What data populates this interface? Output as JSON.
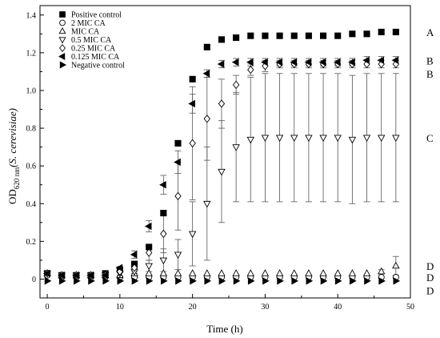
{
  "chart_data": {
    "type": "scatter",
    "xlabel": "Time (h)",
    "ylabel": {
      "prefix": "OD",
      "subscript": "620 nm",
      "organism": "(S. cerevisiae)"
    },
    "xlim": [
      -1,
      50
    ],
    "ylim": [
      -0.1,
      1.45
    ],
    "xticks": [
      0,
      10,
      20,
      30,
      40,
      50
    ],
    "yticks": [
      0,
      0.2,
      0.4,
      0.6,
      0.8,
      1.0,
      1.2,
      1.4
    ],
    "ytick_labels": [
      "0",
      "0.2",
      "0.4",
      "0.6",
      "0.8",
      "1.0",
      "1.2",
      "1.4"
    ],
    "legend": "top-left",
    "x": [
      0,
      2,
      4,
      6,
      8,
      10,
      12,
      14,
      16,
      18,
      20,
      22,
      24,
      26,
      28,
      30,
      32,
      34,
      36,
      38,
      40,
      42,
      44,
      46,
      48
    ],
    "series": [
      {
        "name": "Positive control",
        "marker": "square-filled",
        "values": [
          0.03,
          0.02,
          0.02,
          0.02,
          0.03,
          0.05,
          0.08,
          0.17,
          0.35,
          0.72,
          1.06,
          1.23,
          1.27,
          1.28,
          1.29,
          1.29,
          1.29,
          1.29,
          1.29,
          1.29,
          1.29,
          1.3,
          1.3,
          1.31,
          1.31
        ]
      },
      {
        "name": "2 MIC CA",
        "marker": "circle-open",
        "values": [
          0.02,
          0.01,
          0.01,
          0.01,
          0.01,
          0.01,
          0.01,
          0.01,
          0.01,
          0.01,
          0.01,
          0.01,
          0.01,
          0.01,
          0.01,
          0.01,
          0.01,
          0.01,
          0.01,
          0.01,
          0.01,
          0.01,
          0.01,
          0.01,
          0.01
        ]
      },
      {
        "name": "MIC CA",
        "marker": "triangle-up-open",
        "values": [
          0.03,
          0.02,
          0.02,
          0.02,
          0.02,
          0.02,
          0.03,
          0.03,
          0.03,
          0.03,
          0.03,
          0.03,
          0.03,
          0.03,
          0.03,
          0.03,
          0.03,
          0.03,
          0.03,
          0.03,
          0.03,
          0.03,
          0.03,
          0.04,
          0.07
        ],
        "error": [
          0,
          0,
          0,
          0,
          0,
          0,
          0,
          0,
          0,
          0,
          0,
          0,
          0,
          0,
          0,
          0,
          0,
          0,
          0,
          0,
          0,
          0,
          0,
          0.01,
          0.05
        ]
      },
      {
        "name": "0.5 MIC CA",
        "marker": "triangle-down-open",
        "values": [
          0.03,
          0.02,
          0.02,
          0.02,
          0.02,
          0.03,
          0.04,
          0.07,
          0.1,
          0.13,
          0.24,
          0.4,
          0.57,
          0.7,
          0.74,
          0.75,
          0.75,
          0.75,
          0.75,
          0.75,
          0.75,
          0.74,
          0.75,
          0.75,
          0.75
        ],
        "error": [
          0,
          0,
          0,
          0,
          0,
          0,
          0.01,
          0.03,
          0.06,
          0.08,
          0.17,
          0.3,
          0.27,
          0.29,
          0.33,
          0.34,
          0.34,
          0.34,
          0.34,
          0.34,
          0.34,
          0.34,
          0.34,
          0.34,
          0.34
        ]
      },
      {
        "name": "0.25 MIC CA",
        "marker": "diamond-open",
        "values": [
          0.03,
          0.02,
          0.02,
          0.02,
          0.02,
          0.04,
          0.06,
          0.14,
          0.24,
          0.44,
          0.72,
          0.85,
          0.93,
          1.03,
          1.11,
          1.13,
          1.14,
          1.14,
          1.14,
          1.14,
          1.14,
          1.14,
          1.14,
          1.14,
          1.14
        ],
        "error": [
          0,
          0,
          0,
          0,
          0,
          0,
          0.02,
          0.04,
          0.1,
          0.18,
          0.3,
          0.22,
          0.13,
          0.05,
          0.03,
          0.03,
          0.02,
          0.02,
          0.02,
          0.02,
          0.02,
          0.02,
          0.02,
          0.02,
          0.02
        ]
      },
      {
        "name": "0.125 MIC CA",
        "marker": "triangle-left-filled",
        "values": [
          0.03,
          0.02,
          0.02,
          0.02,
          0.02,
          0.06,
          0.13,
          0.28,
          0.5,
          0.62,
          0.93,
          1.09,
          1.14,
          1.15,
          1.15,
          1.15,
          1.15,
          1.15,
          1.15,
          1.15,
          1.15,
          1.15,
          1.16,
          1.16,
          1.16
        ],
        "error": [
          0,
          0,
          0,
          0,
          0,
          0,
          0.02,
          0.03,
          0.05,
          0.06,
          0.05,
          0.02,
          0.02,
          0.02,
          0.02,
          0.02,
          0.02,
          0.02,
          0.02,
          0.02,
          0.02,
          0.02,
          0.02,
          0.02,
          0.02
        ]
      },
      {
        "name": "Negative control",
        "marker": "triangle-right-filled",
        "values": [
          -0.01,
          -0.01,
          -0.01,
          -0.01,
          -0.01,
          -0.01,
          -0.01,
          -0.01,
          -0.01,
          -0.01,
          -0.01,
          -0.01,
          -0.01,
          -0.01,
          -0.01,
          -0.01,
          -0.01,
          -0.01,
          -0.01,
          -0.01,
          -0.01,
          -0.01,
          -0.01,
          -0.01,
          -0.01
        ]
      }
    ],
    "annotations": [
      {
        "text": "A",
        "y": 1.31
      },
      {
        "text": "B",
        "y": 1.16
      },
      {
        "text": "B",
        "y": 1.09
      },
      {
        "text": "C",
        "y": 0.75
      },
      {
        "text": "D",
        "y": 0.07
      },
      {
        "text": "D",
        "y": 0.01
      },
      {
        "text": "D",
        "y": -0.06
      }
    ]
  }
}
